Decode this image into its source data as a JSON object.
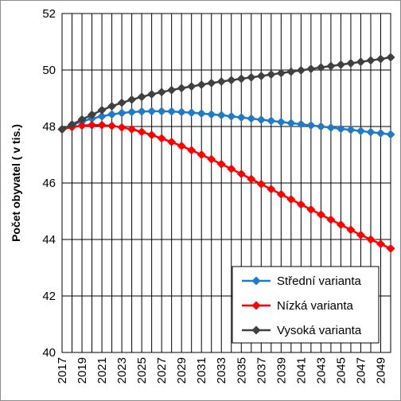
{
  "chart_data": {
    "type": "line",
    "title": "",
    "xlabel": "",
    "ylabel": "Počet obyvatel ( v tis.)",
    "ylim": [
      40,
      52
    ],
    "yticks": [
      40,
      42,
      44,
      46,
      48,
      50,
      52
    ],
    "x": [
      2017,
      2018,
      2019,
      2020,
      2021,
      2022,
      2023,
      2024,
      2025,
      2026,
      2027,
      2028,
      2029,
      2030,
      2031,
      2032,
      2033,
      2034,
      2035,
      2036,
      2037,
      2038,
      2039,
      2040,
      2041,
      2042,
      2043,
      2044,
      2045,
      2046,
      2047,
      2048,
      2049,
      2050
    ],
    "xtick_labels": [
      "2017",
      "2019",
      "2021",
      "2023",
      "2025",
      "2027",
      "2029",
      "2031",
      "2033",
      "2035",
      "2037",
      "2039",
      "2041",
      "2043",
      "2045",
      "2047",
      "2049"
    ],
    "grid": true,
    "legend_position": "bottom-right",
    "series": [
      {
        "name": "Střední varianta",
        "color": "#1f7ac8",
        "marker": "diamond",
        "values": [
          47.9,
          48.05,
          48.18,
          48.28,
          48.36,
          48.43,
          48.48,
          48.51,
          48.53,
          48.54,
          48.54,
          48.53,
          48.51,
          48.49,
          48.46,
          48.43,
          48.4,
          48.36,
          48.32,
          48.28,
          48.24,
          48.2,
          48.16,
          48.12,
          48.08,
          48.04,
          48.0,
          47.96,
          47.92,
          47.88,
          47.84,
          47.8,
          47.76,
          47.72
        ]
      },
      {
        "name": "Nízká varianta",
        "color": "#ff0000",
        "marker": "diamond",
        "values": [
          47.9,
          47.98,
          48.03,
          48.05,
          48.05,
          48.02,
          47.97,
          47.9,
          47.81,
          47.7,
          47.58,
          47.45,
          47.31,
          47.16,
          47.0,
          46.84,
          46.67,
          46.5,
          46.32,
          46.14,
          45.96,
          45.78,
          45.6,
          45.42,
          45.24,
          45.06,
          44.88,
          44.7,
          44.52,
          44.34,
          44.16,
          44.0,
          43.84,
          43.68
        ]
      },
      {
        "name": "Vysoká varianta",
        "color": "#404040",
        "marker": "diamond",
        "values": [
          47.9,
          48.07,
          48.25,
          48.42,
          48.58,
          48.72,
          48.84,
          48.95,
          49.05,
          49.14,
          49.22,
          49.29,
          49.36,
          49.42,
          49.48,
          49.54,
          49.59,
          49.64,
          49.69,
          49.74,
          49.79,
          49.84,
          49.89,
          49.94,
          49.99,
          50.04,
          50.09,
          50.14,
          50.19,
          50.24,
          50.29,
          50.34,
          50.39,
          50.45
        ]
      }
    ]
  }
}
